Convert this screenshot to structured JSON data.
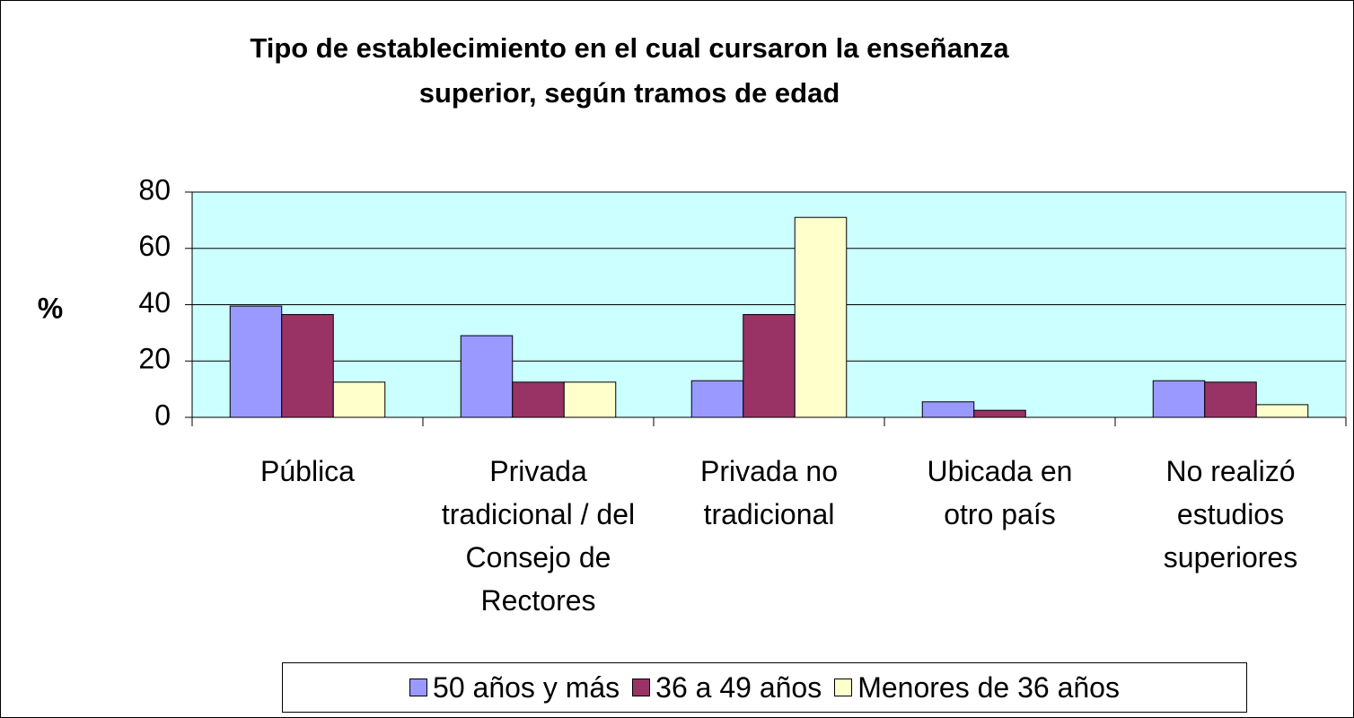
{
  "chart_data": {
    "type": "bar",
    "title": "Tipo de establecimiento en el cual cursaron la enseñanza superior, según tramos de edad",
    "y_label": "%",
    "categories": [
      "Pública",
      "Privada tradicional / del Consejo de Rectores",
      "Privada no tradicional",
      "Ubicada en otro país",
      "No realizó estudios superiores"
    ],
    "series": [
      {
        "name": "50 años y más",
        "color": "#9999ff",
        "values": [
          39.5,
          29,
          13,
          5.5,
          13
        ]
      },
      {
        "name": "36 a 49 años",
        "color": "#993366",
        "values": [
          36.5,
          12.5,
          36.5,
          2.5,
          12.5
        ]
      },
      {
        "name": "Menores de 36 años",
        "color": "#ffffcc",
        "values": [
          12.5,
          12.5,
          71,
          0,
          4.5
        ]
      }
    ],
    "ylim": [
      0,
      80
    ],
    "yticks": [
      0,
      20,
      40,
      60,
      80
    ],
    "grid": true,
    "plot_background": "#ccffff",
    "legend": "bottom"
  }
}
